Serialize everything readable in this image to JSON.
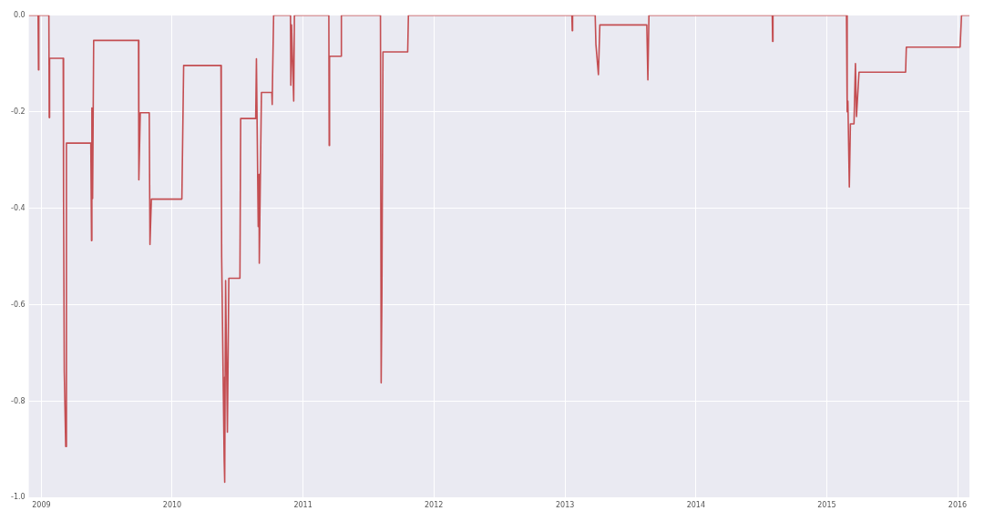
{
  "chart_data": {
    "type": "line",
    "color": "#c44e52",
    "grid": true,
    "legend": false,
    "marker": "none",
    "line_style": "solid",
    "xlim": [
      "2008-11-27",
      "2016-02-03"
    ],
    "xticks": [
      {
        "value": "2009-01-01",
        "label": "2009"
      },
      {
        "value": "2010-01-01",
        "label": "2010"
      },
      {
        "value": "2011-01-01",
        "label": "2011"
      },
      {
        "value": "2012-01-01",
        "label": "2012"
      },
      {
        "value": "2013-01-01",
        "label": "2013"
      },
      {
        "value": "2014-01-01",
        "label": "2014"
      },
      {
        "value": "2015-01-01",
        "label": "2015"
      },
      {
        "value": "2016-01-01",
        "label": "2016"
      }
    ],
    "ylim": [
      -1,
      0
    ],
    "yticks": [
      {
        "value": -1,
        "label": "-1.0"
      },
      -0.8,
      -0.6,
      -0.4,
      -0.2,
      {
        "value": 0,
        "label": "0.0"
      }
    ],
    "x": [
      "2008-11-27",
      "2008-12-23",
      "2008-12-24",
      "2008-12-25",
      "2009-01-22",
      "2009-01-23",
      "2009-01-24",
      "2009-03-03",
      "2009-03-04",
      "2009-03-06",
      "2009-03-10",
      "2009-03-12",
      "2009-05-19",
      "2009-05-21",
      "2009-05-22",
      "2009-05-24",
      "2009-05-27",
      "2009-09-29",
      "2009-09-30",
      "2009-10-04",
      "2009-10-29",
      "2009-10-31",
      "2009-11-04",
      "2010-01-28",
      "2010-02-02",
      "2010-05-17",
      "2010-05-18",
      "2010-05-19",
      "2010-05-26",
      "2010-05-27",
      "2010-05-28",
      "2010-05-30",
      "2010-06-04",
      "2010-06-08",
      "2010-07-09",
      "2010-07-11",
      "2010-08-22",
      "2010-08-24",
      "2010-08-29",
      "2010-08-31",
      "2010-09-01",
      "2010-09-07",
      "2010-10-06",
      "2010-10-07",
      "2010-10-08",
      "2010-10-11",
      "2010-11-27",
      "2010-11-28",
      "2010-11-30",
      "2010-12-06",
      "2010-12-08",
      "2011-03-14",
      "2011-03-15",
      "2011-03-16",
      "2011-04-17",
      "2011-04-18",
      "2011-08-05",
      "2011-08-07",
      "2011-08-09",
      "2011-08-12",
      "2011-10-20",
      "2011-10-22",
      "2013-01-20",
      "2013-01-21",
      "2013-01-22",
      "2013-03-26",
      "2013-03-28",
      "2013-04-04",
      "2013-04-08",
      "2013-08-17",
      "2013-08-20",
      "2013-08-23",
      "2014-08-02",
      "2014-08-03",
      "2014-08-04",
      "2015-02-25",
      "2015-02-27",
      "2015-03-01",
      "2015-03-05",
      "2015-03-08",
      "2015-03-18",
      "2015-03-22",
      "2015-03-25",
      "2015-04-01",
      "2015-08-09",
      "2015-08-11",
      "2016-01-08",
      "2016-01-12",
      "2016-02-03"
    ],
    "values": [
      0,
      0,
      -0.113,
      0,
      0,
      -0.212,
      -0.089,
      -0.089,
      -0.388,
      -0.739,
      -0.894,
      -0.265,
      -0.265,
      -0.467,
      -0.192,
      -0.38,
      -0.052,
      -0.052,
      -0.341,
      -0.202,
      -0.202,
      -0.475,
      -0.381,
      -0.381,
      -0.104,
      -0.104,
      -0.283,
      -0.5,
      -0.92,
      -0.75,
      -0.968,
      -0.55,
      -0.864,
      -0.545,
      -0.545,
      -0.214,
      -0.214,
      -0.09,
      -0.438,
      -0.33,
      -0.514,
      -0.16,
      -0.16,
      -0.185,
      -0.13,
      0,
      0,
      -0.145,
      -0.02,
      -0.178,
      0,
      0,
      -0.27,
      -0.085,
      -0.085,
      0,
      0,
      -0.762,
      -0.58,
      -0.076,
      -0.076,
      0,
      0,
      -0.032,
      0,
      0,
      -0.06,
      -0.123,
      -0.02,
      -0.02,
      -0.134,
      0,
      0,
      -0.054,
      0,
      0,
      -0.2,
      -0.178,
      -0.356,
      -0.225,
      -0.225,
      -0.1,
      -0.21,
      -0.118,
      -0.118,
      -0.066,
      -0.066,
      0,
      0
    ]
  }
}
